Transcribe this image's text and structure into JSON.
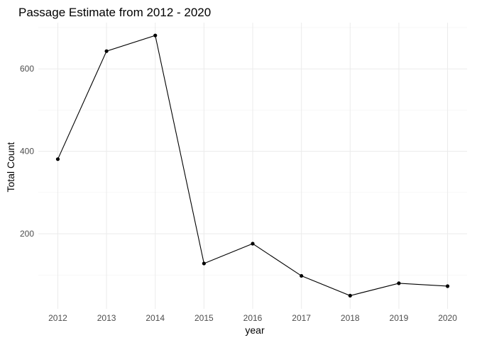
{
  "chart_data": {
    "type": "line",
    "title": "Passage Estimate from 2012 - 2020",
    "xlabel": "year",
    "ylabel": "Total Count",
    "x": [
      2012,
      2013,
      2014,
      2015,
      2016,
      2017,
      2018,
      2019,
      2020
    ],
    "series": [
      {
        "values": [
          381,
          643,
          681,
          128,
          176,
          98,
          50,
          80,
          73
        ],
        "color": "#000000"
      }
    ],
    "x_ticks": [
      "2012",
      "2013",
      "2014",
      "2015",
      "2016",
      "2017",
      "2018",
      "2019",
      "2020"
    ],
    "y_ticks": [
      200,
      400,
      600
    ],
    "y_tick_labels": [
      "200",
      "400",
      "600"
    ],
    "ylim": [
      18,
      712
    ],
    "grid": true,
    "legend": "none"
  }
}
